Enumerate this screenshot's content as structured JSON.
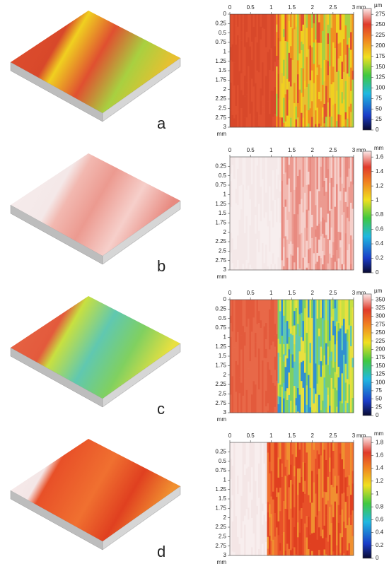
{
  "panels": [
    {
      "label": "a",
      "x_unit": "mm",
      "y_unit": "mm",
      "xticks": [
        "0",
        "0.5",
        "1",
        "1.5",
        "2",
        "2.5",
        "3"
      ],
      "yticks": [
        "0",
        "0.25",
        "0.5",
        "0.75",
        "1",
        "1.25",
        "1.5",
        "1.75",
        "2",
        "2.25",
        "2.5",
        "2.75",
        "3"
      ],
      "colorbar": {
        "unit": "µm",
        "ticks": [
          "0",
          "25",
          "50",
          "75",
          "100",
          "125",
          "150",
          "175",
          "200",
          "225",
          "250",
          "275"
        ]
      }
    },
    {
      "label": "b",
      "x_unit": "mm",
      "y_unit": "mm",
      "xticks": [
        "0",
        "0.5",
        "1",
        "1.5",
        "2",
        "2.5",
        "3"
      ],
      "yticks": [
        "0.25",
        "0.5",
        "0.75",
        "1",
        "1.25",
        "1.5",
        "1.75",
        "2",
        "2.25",
        "2.5",
        "2.75",
        "3"
      ],
      "colorbar": {
        "unit": "mm",
        "ticks": [
          "0",
          "0.2",
          "0.4",
          "0.6",
          "0.8",
          "1",
          "1.2",
          "1.4",
          "1.6"
        ]
      }
    },
    {
      "label": "c",
      "x_unit": "mm",
      "y_unit": "mm",
      "xticks": [
        "0",
        "0.5",
        "1",
        "1.5",
        "2",
        "2.5",
        "3"
      ],
      "yticks": [
        "0",
        "0.25",
        "0.5",
        "0.75",
        "1",
        "1.25",
        "1.5",
        "1.75",
        "2",
        "2.25",
        "2.5",
        "2.75",
        "3"
      ],
      "colorbar": {
        "unit": "µm",
        "ticks": [
          "0",
          "25",
          "50",
          "75",
          "100",
          "125",
          "150",
          "175",
          "200",
          "225",
          "250",
          "275",
          "300",
          "325",
          "350"
        ]
      }
    },
    {
      "label": "d",
      "x_unit": "mm",
      "y_unit": "mm",
      "xticks": [
        "0",
        "0.5",
        "1",
        "1.5",
        "2",
        "2.5",
        "3"
      ],
      "yticks": [
        "0.25",
        "0.5",
        "0.75",
        "1",
        "1.25",
        "1.5",
        "1.75",
        "2",
        "2.25",
        "2.5",
        "2.75",
        "3"
      ],
      "colorbar": {
        "unit": "mm",
        "ticks": [
          "0",
          "0.2",
          "0.4",
          "0.6",
          "0.8",
          "1",
          "1.2",
          "1.4",
          "1.6",
          "1.8"
        ]
      }
    }
  ]
}
